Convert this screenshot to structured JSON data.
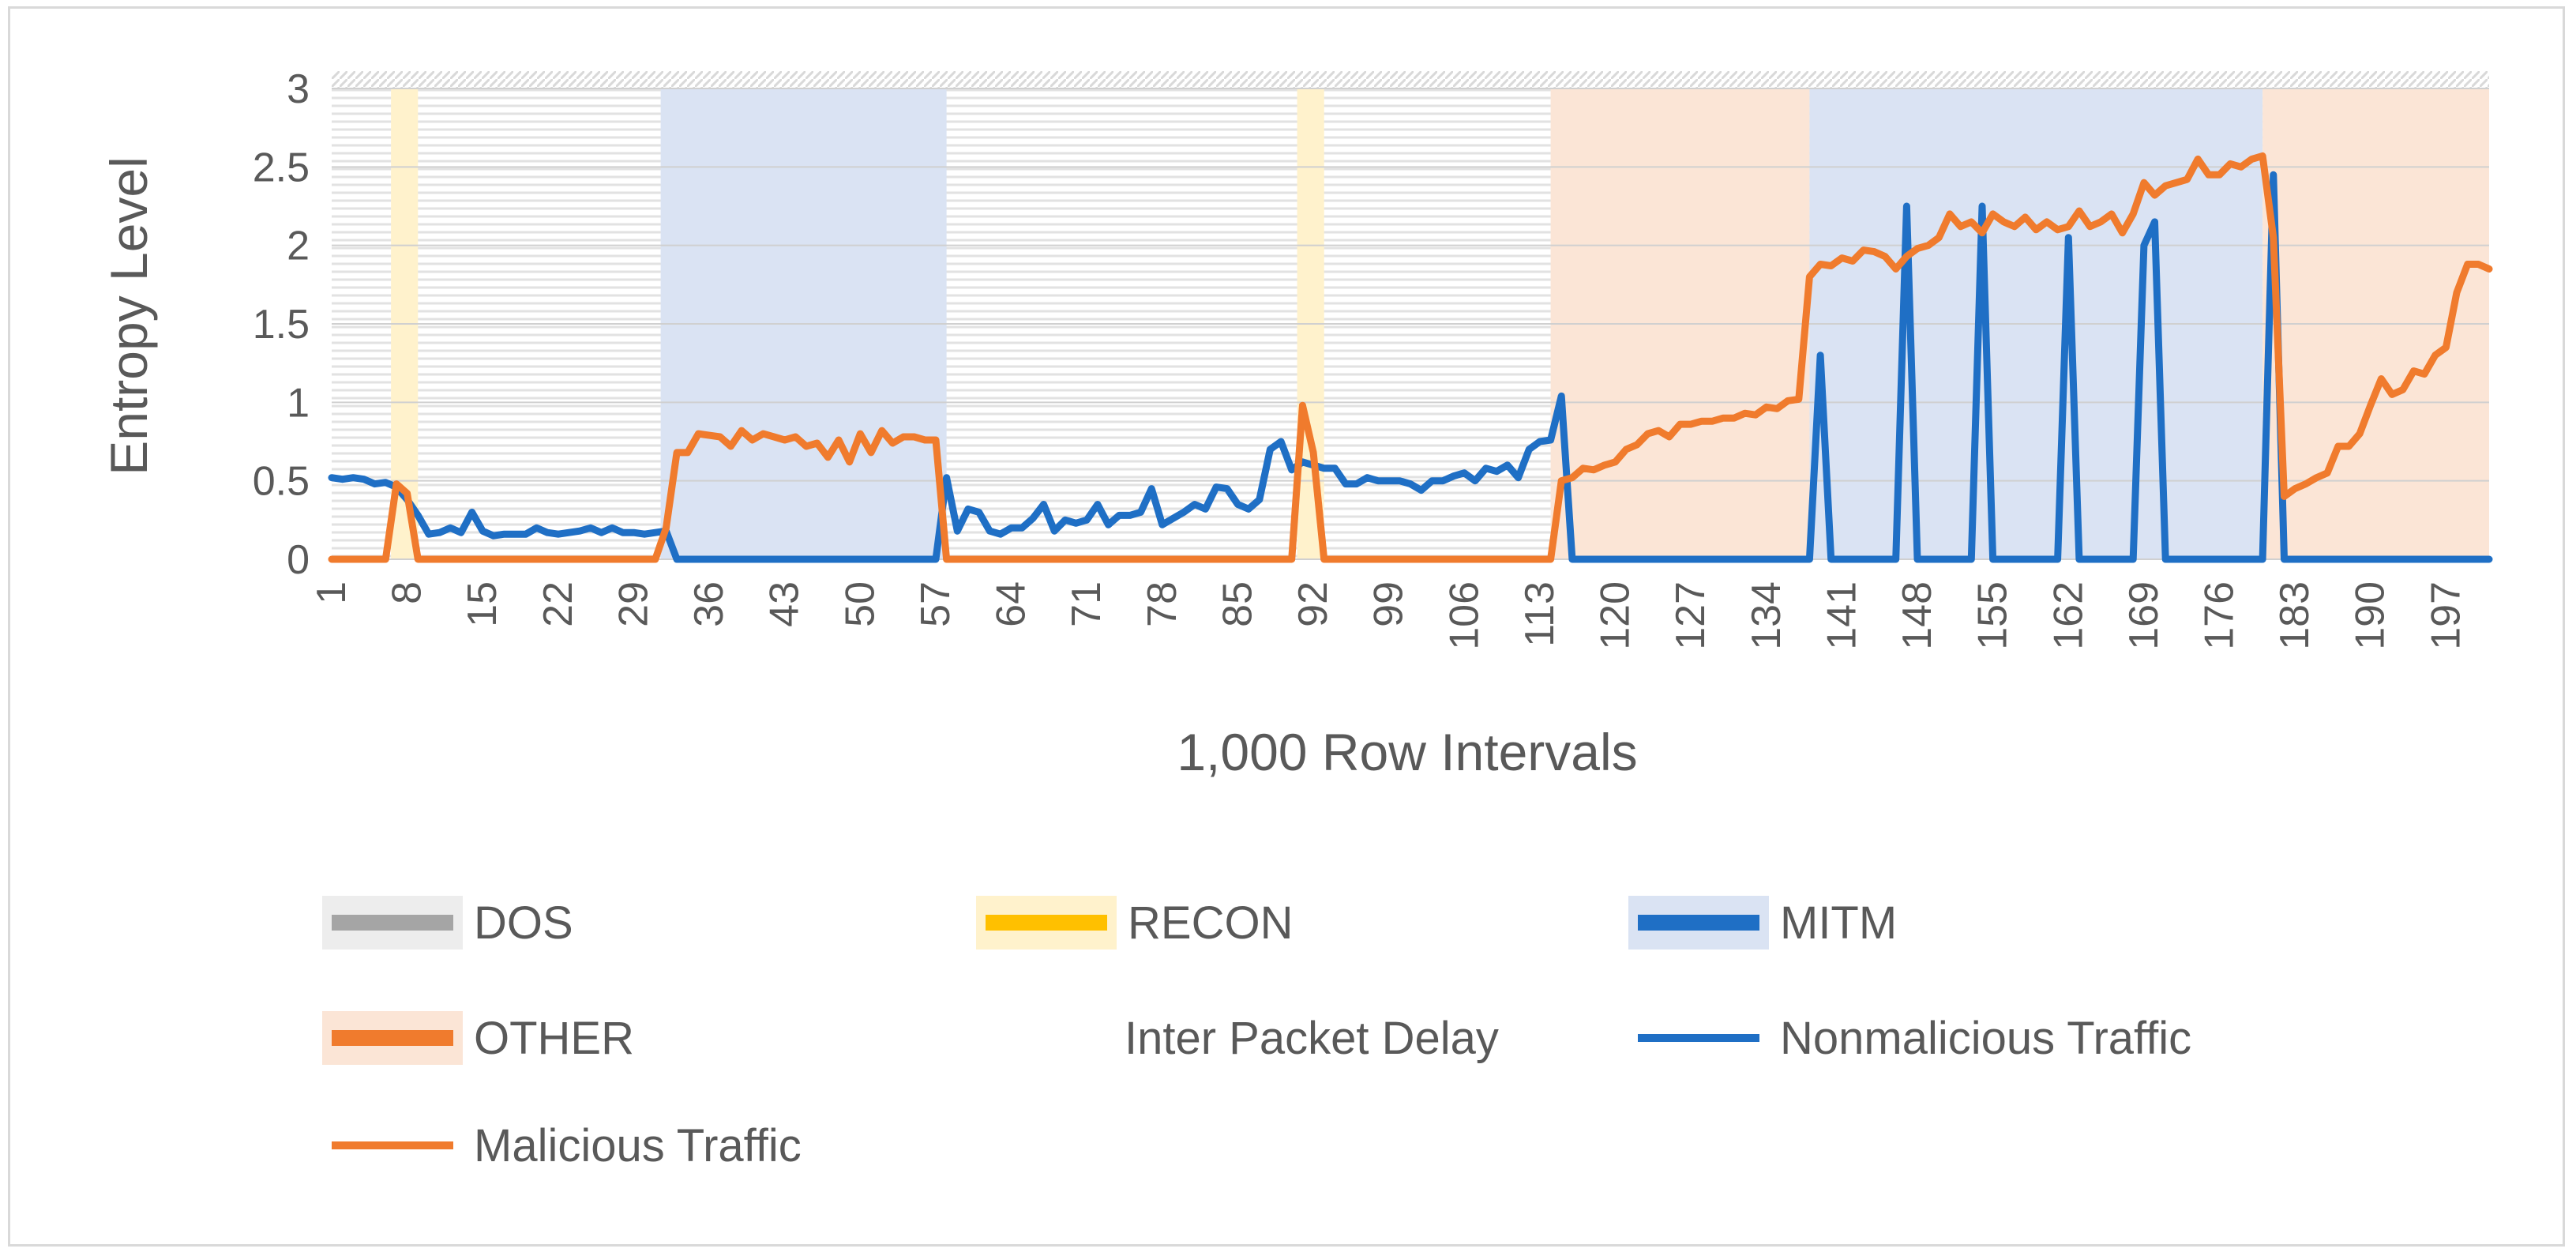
{
  "chart_data": {
    "type": "line",
    "title": "",
    "xlabel": "1,000 Row Intervals",
    "ylabel": "Entropy Level",
    "xlim": [
      1,
      201
    ],
    "ylim": [
      0,
      3
    ],
    "yticks": [
      "0",
      "0.5",
      "1",
      "1.5",
      "2",
      "2.5",
      "3"
    ],
    "xticks": [
      1,
      8,
      15,
      22,
      29,
      36,
      43,
      50,
      57,
      64,
      71,
      78,
      85,
      92,
      99,
      106,
      113,
      120,
      127,
      134,
      141,
      148,
      155,
      162,
      169,
      176,
      183,
      190,
      197
    ],
    "bands": [
      {
        "class": "RECON",
        "from": 6.5,
        "to": 9,
        "color": "#fff2cc"
      },
      {
        "class": "MITM",
        "from": 31.5,
        "to": 58,
        "color": "#dae3f3"
      },
      {
        "class": "RECON",
        "from": 90.5,
        "to": 93,
        "color": "#fff2cc"
      },
      {
        "class": "OTHER",
        "from": 114,
        "to": 138,
        "color": "#fbe5d6"
      },
      {
        "class": "MITM",
        "from": 138,
        "to": 180,
        "color": "#dae3f3"
      },
      {
        "class": "OTHER",
        "from": 180,
        "to": 201,
        "color": "#fbe5d6"
      }
    ],
    "series": [
      {
        "name": "Nonmalicious Traffic",
        "color": "#1f6fc5",
        "points": [
          [
            1,
            0.52
          ],
          [
            2,
            0.51
          ],
          [
            3,
            0.52
          ],
          [
            4,
            0.51
          ],
          [
            5,
            0.48
          ],
          [
            6,
            0.49
          ],
          [
            7,
            0.46
          ],
          [
            8,
            0.38
          ],
          [
            9,
            0.28
          ],
          [
            10,
            0.16
          ],
          [
            11,
            0.17
          ],
          [
            12,
            0.2
          ],
          [
            13,
            0.17
          ],
          [
            14,
            0.3
          ],
          [
            15,
            0.18
          ],
          [
            16,
            0.15
          ],
          [
            17,
            0.16
          ],
          [
            18,
            0.16
          ],
          [
            19,
            0.16
          ],
          [
            20,
            0.2
          ],
          [
            21,
            0.17
          ],
          [
            22,
            0.16
          ],
          [
            23,
            0.17
          ],
          [
            24,
            0.18
          ],
          [
            25,
            0.2
          ],
          [
            26,
            0.17
          ],
          [
            27,
            0.2
          ],
          [
            28,
            0.17
          ],
          [
            29,
            0.17
          ],
          [
            30,
            0.16
          ],
          [
            31,
            0.17
          ],
          [
            32,
            0.18
          ],
          [
            33,
            0
          ],
          [
            57,
            0
          ],
          [
            58,
            0.52
          ],
          [
            59,
            0.18
          ],
          [
            60,
            0.32
          ],
          [
            61,
            0.3
          ],
          [
            62,
            0.18
          ],
          [
            63,
            0.16
          ],
          [
            64,
            0.2
          ],
          [
            65,
            0.2
          ],
          [
            66,
            0.26
          ],
          [
            67,
            0.35
          ],
          [
            68,
            0.18
          ],
          [
            69,
            0.25
          ],
          [
            70,
            0.23
          ],
          [
            71,
            0.25
          ],
          [
            72,
            0.35
          ],
          [
            73,
            0.22
          ],
          [
            74,
            0.28
          ],
          [
            75,
            0.28
          ],
          [
            76,
            0.3
          ],
          [
            77,
            0.45
          ],
          [
            78,
            0.22
          ],
          [
            79,
            0.26
          ],
          [
            80,
            0.3
          ],
          [
            81,
            0.35
          ],
          [
            82,
            0.32
          ],
          [
            83,
            0.46
          ],
          [
            84,
            0.45
          ],
          [
            85,
            0.35
          ],
          [
            86,
            0.32
          ],
          [
            87,
            0.38
          ],
          [
            88,
            0.7
          ],
          [
            89,
            0.75
          ],
          [
            90,
            0.57
          ],
          [
            91,
            0.62
          ],
          [
            92,
            0.6
          ],
          [
            93,
            0.58
          ],
          [
            94,
            0.58
          ],
          [
            95,
            0.48
          ],
          [
            96,
            0.48
          ],
          [
            97,
            0.52
          ],
          [
            98,
            0.5
          ],
          [
            99,
            0.5
          ],
          [
            100,
            0.5
          ],
          [
            101,
            0.48
          ],
          [
            102,
            0.44
          ],
          [
            103,
            0.5
          ],
          [
            104,
            0.5
          ],
          [
            105,
            0.53
          ],
          [
            106,
            0.55
          ],
          [
            107,
            0.5
          ],
          [
            108,
            0.58
          ],
          [
            109,
            0.56
          ],
          [
            110,
            0.6
          ],
          [
            111,
            0.52
          ],
          [
            112,
            0.7
          ],
          [
            113,
            0.75
          ],
          [
            114,
            0.76
          ],
          [
            115,
            1.04
          ],
          [
            116,
            0
          ],
          [
            138,
            0
          ],
          [
            139,
            1.3
          ],
          [
            140,
            0
          ],
          [
            146,
            0
          ],
          [
            147,
            2.25
          ],
          [
            148,
            0
          ],
          [
            153,
            0
          ],
          [
            154,
            2.25
          ],
          [
            155,
            0
          ],
          [
            161,
            0
          ],
          [
            162,
            2.05
          ],
          [
            163,
            0
          ],
          [
            168,
            0
          ],
          [
            169,
            2.0
          ],
          [
            170,
            2.15
          ],
          [
            171,
            0
          ],
          [
            180,
            0
          ],
          [
            181,
            2.45
          ],
          [
            182,
            0
          ],
          [
            201,
            0
          ]
        ]
      },
      {
        "name": "Malicious Traffic",
        "color": "#f07b2d",
        "points": [
          [
            1,
            0
          ],
          [
            6,
            0
          ],
          [
            7,
            0.48
          ],
          [
            8,
            0.42
          ],
          [
            9,
            0
          ],
          [
            31,
            0
          ],
          [
            32,
            0.2
          ],
          [
            33,
            0.68
          ],
          [
            34,
            0.68
          ],
          [
            35,
            0.8
          ],
          [
            36,
            0.79
          ],
          [
            37,
            0.78
          ],
          [
            38,
            0.72
          ],
          [
            39,
            0.82
          ],
          [
            40,
            0.76
          ],
          [
            41,
            0.8
          ],
          [
            42,
            0.78
          ],
          [
            43,
            0.76
          ],
          [
            44,
            0.78
          ],
          [
            45,
            0.72
          ],
          [
            46,
            0.74
          ],
          [
            47,
            0.65
          ],
          [
            48,
            0.76
          ],
          [
            49,
            0.62
          ],
          [
            50,
            0.8
          ],
          [
            51,
            0.68
          ],
          [
            52,
            0.82
          ],
          [
            53,
            0.74
          ],
          [
            54,
            0.78
          ],
          [
            55,
            0.78
          ],
          [
            56,
            0.76
          ],
          [
            57,
            0.76
          ],
          [
            58,
            0
          ],
          [
            90,
            0
          ],
          [
            91,
            0.98
          ],
          [
            92,
            0.68
          ],
          [
            93,
            0
          ],
          [
            114,
            0
          ],
          [
            115,
            0.5
          ],
          [
            116,
            0.52
          ],
          [
            117,
            0.58
          ],
          [
            118,
            0.57
          ],
          [
            119,
            0.6
          ],
          [
            120,
            0.62
          ],
          [
            121,
            0.7
          ],
          [
            122,
            0.73
          ],
          [
            123,
            0.8
          ],
          [
            124,
            0.82
          ],
          [
            125,
            0.78
          ],
          [
            126,
            0.86
          ],
          [
            127,
            0.86
          ],
          [
            128,
            0.88
          ],
          [
            129,
            0.88
          ],
          [
            130,
            0.9
          ],
          [
            131,
            0.9
          ],
          [
            132,
            0.93
          ],
          [
            133,
            0.92
          ],
          [
            134,
            0.97
          ],
          [
            135,
            0.96
          ],
          [
            136,
            1.01
          ],
          [
            137,
            1.02
          ],
          [
            138,
            1.8
          ],
          [
            139,
            1.88
          ],
          [
            140,
            1.87
          ],
          [
            141,
            1.92
          ],
          [
            142,
            1.9
          ],
          [
            143,
            1.97
          ],
          [
            144,
            1.96
          ],
          [
            145,
            1.93
          ],
          [
            146,
            1.85
          ],
          [
            147,
            1.93
          ],
          [
            148,
            1.98
          ],
          [
            149,
            2.0
          ],
          [
            150,
            2.05
          ],
          [
            151,
            2.2
          ],
          [
            152,
            2.12
          ],
          [
            153,
            2.15
          ],
          [
            154,
            2.08
          ],
          [
            155,
            2.2
          ],
          [
            156,
            2.15
          ],
          [
            157,
            2.12
          ],
          [
            158,
            2.18
          ],
          [
            159,
            2.1
          ],
          [
            160,
            2.15
          ],
          [
            161,
            2.1
          ],
          [
            162,
            2.12
          ],
          [
            163,
            2.22
          ],
          [
            164,
            2.12
          ],
          [
            165,
            2.15
          ],
          [
            166,
            2.2
          ],
          [
            167,
            2.08
          ],
          [
            168,
            2.2
          ],
          [
            169,
            2.4
          ],
          [
            170,
            2.32
          ],
          [
            171,
            2.38
          ],
          [
            172,
            2.4
          ],
          [
            173,
            2.42
          ],
          [
            174,
            2.55
          ],
          [
            175,
            2.45
          ],
          [
            176,
            2.45
          ],
          [
            177,
            2.52
          ],
          [
            178,
            2.5
          ],
          [
            179,
            2.55
          ],
          [
            180,
            2.57
          ],
          [
            181,
            2.05
          ],
          [
            182,
            0.4
          ],
          [
            183,
            0.45
          ],
          [
            184,
            0.48
          ],
          [
            185,
            0.52
          ],
          [
            186,
            0.55
          ],
          [
            187,
            0.72
          ],
          [
            188,
            0.72
          ],
          [
            189,
            0.8
          ],
          [
            190,
            0.98
          ],
          [
            191,
            1.15
          ],
          [
            192,
            1.05
          ],
          [
            193,
            1.08
          ],
          [
            194,
            1.2
          ],
          [
            195,
            1.18
          ],
          [
            196,
            1.3
          ],
          [
            197,
            1.35
          ],
          [
            198,
            1.7
          ],
          [
            199,
            1.88
          ],
          [
            200,
            1.88
          ],
          [
            201,
            1.85
          ]
        ]
      }
    ],
    "legend": [
      {
        "label": "DOS",
        "swatch": "#ededed",
        "line": "#a5a5a5",
        "row": 0,
        "col": 0
      },
      {
        "label": "RECON",
        "swatch": "#fff2cc",
        "line": "#ffc000",
        "row": 0,
        "col": 1
      },
      {
        "label": "MITM",
        "swatch": "#dae3f3",
        "line": "#1f6fc5",
        "row": 0,
        "col": 2
      },
      {
        "label": "OTHER",
        "swatch": "#fbe5d6",
        "line": "#f07b2d",
        "row": 1,
        "col": 0
      },
      {
        "label": "Inter Packet Delay",
        "swatch": "",
        "line": "",
        "row": 1,
        "col": 1
      },
      {
        "label": "Nonmalicious Traffic",
        "swatch": "",
        "line": "#1f6fc5",
        "row": 1,
        "col": 2
      },
      {
        "label": "Malicious Traffic",
        "swatch": "",
        "line": "#f07b2d",
        "row": 2,
        "col": 0
      }
    ],
    "legend_position": "bottom",
    "grid": "y-hatched"
  }
}
